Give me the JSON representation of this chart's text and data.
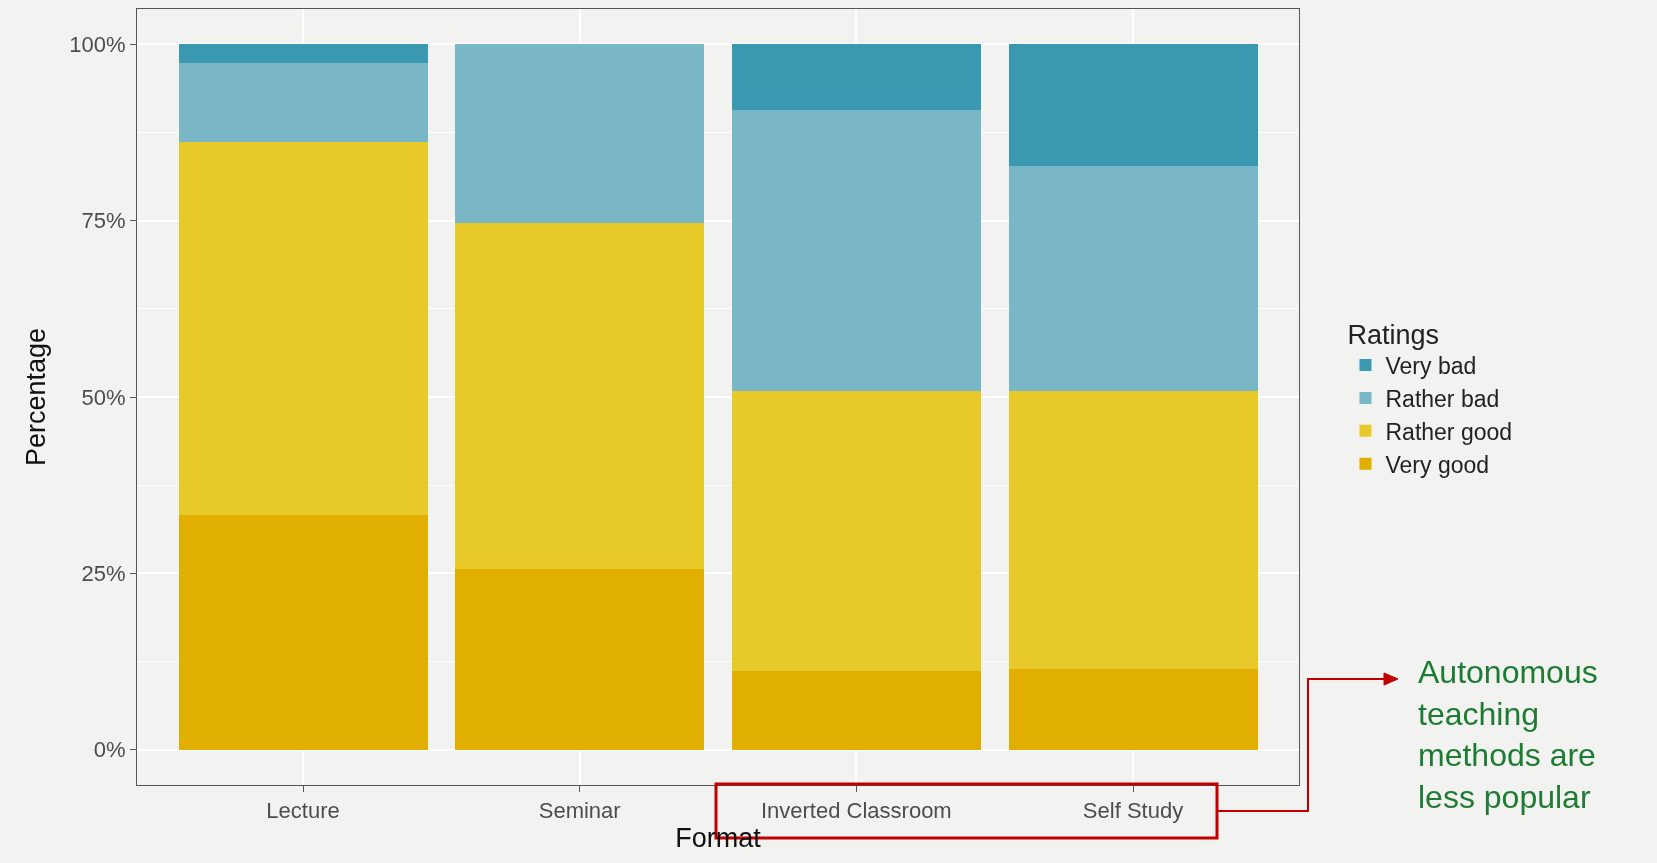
{
  "chart_data": {
    "type": "bar",
    "stacked": true,
    "xlabel": "Format",
    "ylabel": "Percentage",
    "legend_title": "Ratings",
    "categories": [
      "Lecture",
      "Seminar",
      "Inverted Classroom",
      "Self Study"
    ],
    "series": [
      {
        "name": "Very good",
        "color": "#e0af00",
        "values": [
          33.3,
          25.6,
          11.1,
          11.5
        ]
      },
      {
        "name": "Rather good",
        "color": "#e8c92a",
        "values": [
          52.9,
          49.0,
          39.7,
          39.3
        ]
      },
      {
        "name": "Rather bad",
        "color": "#79b6c6",
        "values": [
          11.1,
          25.4,
          39.9,
          31.9
        ]
      },
      {
        "name": "Very bad",
        "color": "#3a98b1",
        "values": [
          2.7,
          0,
          9.3,
          17.3
        ]
      }
    ],
    "ylim": [
      -5,
      105
    ],
    "yticks": [
      {
        "value": 0,
        "label": "0%"
      },
      {
        "value": 25,
        "label": "25%"
      },
      {
        "value": 50,
        "label": "50%"
      },
      {
        "value": 75,
        "label": "75%"
      },
      {
        "value": 100,
        "label": "100%"
      }
    ],
    "grid": true,
    "legend": "right",
    "annotations": [
      "Autonomous teaching methods are less popular"
    ]
  }
}
